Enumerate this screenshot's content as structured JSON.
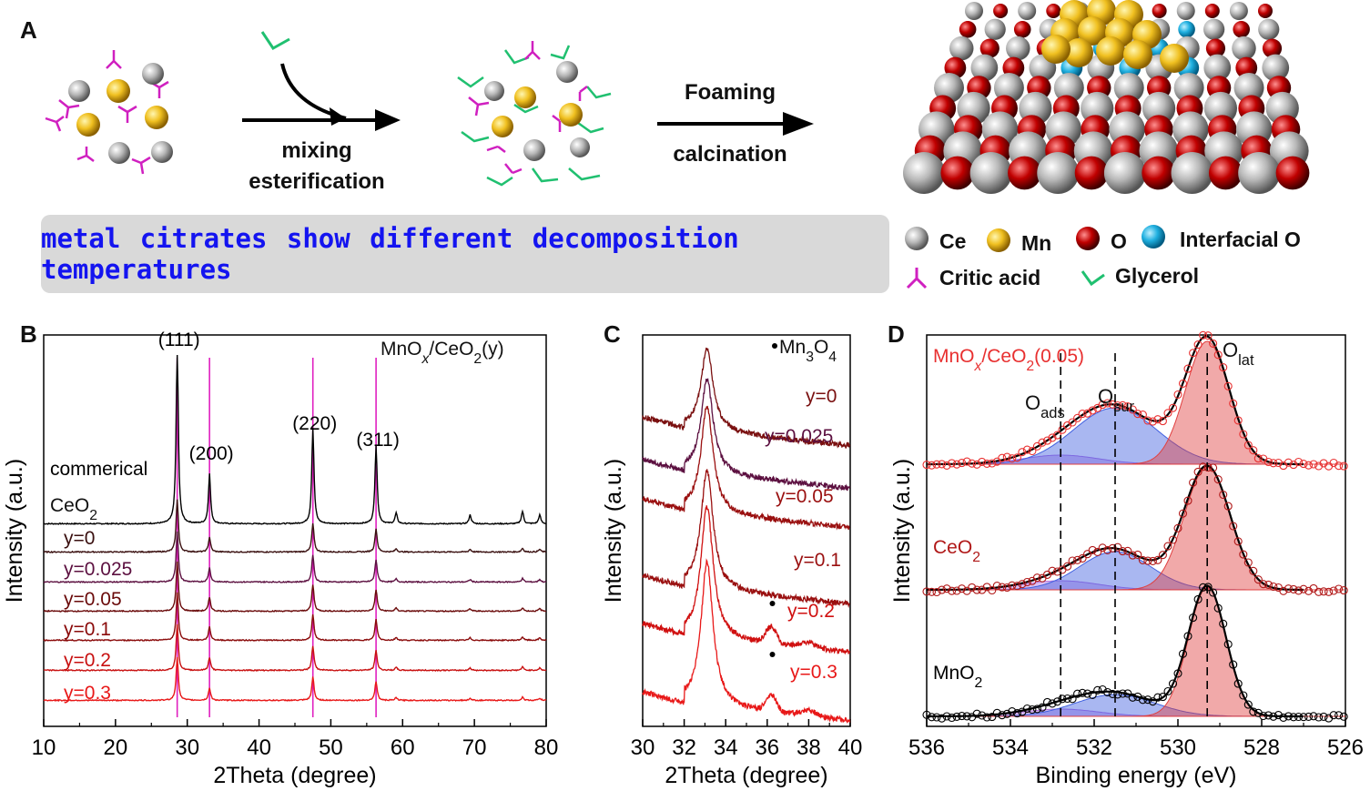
{
  "panel_a": {
    "letter": "A",
    "step1_label_1": "mixing",
    "step1_label_2": "esterification",
    "step2_label_1": "Foaming",
    "step2_label_2": "calcination",
    "banner": "metal citrates show different decomposition temperatures",
    "legend": {
      "ce": "Ce",
      "mn": "Mn",
      "o": "O",
      "interfacial_o": "Interfacial O",
      "citric_acid": "Critic acid",
      "glycerol": "Glycerol"
    },
    "colors": {
      "ce": "#c8c8c8",
      "mn": "#f0c020",
      "o": "#c80000",
      "interfacial_o": "#20b0e0",
      "citric": "#d020c0",
      "glycerol": "#20c070"
    }
  },
  "chart_data": [
    {
      "panel": "B",
      "type": "line",
      "xlabel": "2Theta (degree)",
      "ylabel": "Intensity (a.u.)",
      "xlim": [
        10,
        80
      ],
      "xticks": [
        "10",
        "20",
        "30",
        "40",
        "50",
        "60",
        "70",
        "80"
      ],
      "annotation": "MnO",
      "annotation_sub_x": "x",
      "annotation_mid": "/CeO",
      "annotation_sub_2": "2",
      "annotation_end": "(y)",
      "peaks": [
        {
          "label": "(111)",
          "x": 28.6
        },
        {
          "label": "(200)",
          "x": 33.1
        },
        {
          "label": "(220)",
          "x": 47.5
        },
        {
          "label": "(311)",
          "x": 56.3
        }
      ],
      "series": [
        {
          "name": "commerical",
          "name2": "CeO",
          "name2_sub": "2",
          "color": "#000000"
        },
        {
          "name": "y=0",
          "color": "#3a1010"
        },
        {
          "name": "y=0.025",
          "color": "#5c1040"
        },
        {
          "name": "y=0.05",
          "color": "#6a0a0a"
        },
        {
          "name": "y=0.1",
          "color": "#8a0a0a"
        },
        {
          "name": "y=0.2",
          "color": "#c81010"
        },
        {
          "name": "y=0.3",
          "color": "#e81818"
        }
      ]
    },
    {
      "panel": "C",
      "type": "line",
      "xlabel": "2Theta (degree)",
      "ylabel": "Intensity (a.u.)",
      "xlim": [
        30,
        40
      ],
      "xticks": [
        "30",
        "32",
        "34",
        "36",
        "38",
        "40"
      ],
      "marker_label": "Mn",
      "marker_sub_3": "3",
      "marker_O": "O",
      "marker_sub_4": "4",
      "series": [
        {
          "name": "y=0",
          "color": "#7a1010"
        },
        {
          "name": "y=0.025",
          "color": "#5c1040"
        },
        {
          "name": "y=0.05",
          "color": "#9a1010"
        },
        {
          "name": "y=0.1",
          "color": "#9a1010"
        },
        {
          "name": "y=0.2",
          "color": "#d01010"
        },
        {
          "name": "y=0.3",
          "color": "#e81818"
        }
      ]
    },
    {
      "panel": "D",
      "type": "line",
      "xlabel": "Binding energy (eV)",
      "ylabel": "Intensity (a.u.)",
      "xlim": [
        536,
        526
      ],
      "xticks": [
        "536",
        "534",
        "532",
        "530",
        "528",
        "526"
      ],
      "components": {
        "ads": "O",
        "ads_sub": "ads",
        "sur": "O",
        "sur_sub": "sur",
        "lat": "O",
        "lat_sub": "lat"
      },
      "component_positions": {
        "ads": 532.8,
        "sur": 531.5,
        "lat": 529.3
      },
      "series": [
        {
          "name": "MnO",
          "name_sub_x": "x",
          "name_mid": "/CeO",
          "name_sub_2": "2",
          "name_end": "(0.05)",
          "color": "#e83030"
        },
        {
          "name": "CeO",
          "name_sub_2": "2",
          "color": "#b01818"
        },
        {
          "name": "MnO",
          "name_sub_2": "2",
          "color": "#000000"
        }
      ]
    }
  ]
}
